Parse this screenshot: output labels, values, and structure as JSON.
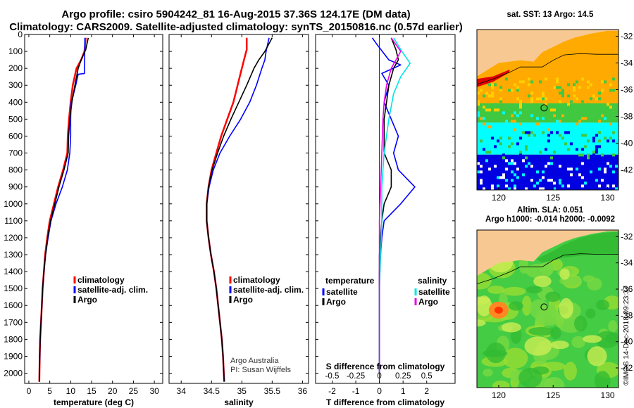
{
  "title_line1": "Argo profile: csiro 5904242_81 16-Aug-2015 37.36S 124.17E (DM data)",
  "title_line2": "Climatology: CARS2009. Satellite-adjusted climatology: synTS_20150816.nc (0.57d earlier)",
  "credit": [
    "Argo Australia",
    "PI: Susan Wijffels"
  ],
  "side_label": "©IMOS 14-Dec-2018 09:23:37",
  "colors": {
    "climatology": "#ff0000",
    "satellite": "#0000ff",
    "argo": "#000000",
    "temp_diff": "#000000",
    "sal_diff": "#000000",
    "sat_temp": "#0000ff",
    "sat_sal": "#00e5e5",
    "argo_sal": "#e800e8"
  },
  "chart_data": [
    {
      "type": "line",
      "xlabel": "temperature (deg C)",
      "xlim": [
        -1,
        32
      ],
      "ylim": [
        2060,
        0
      ],
      "xticks": [
        "0",
        "5",
        "10",
        "15",
        "20",
        "25",
        "30"
      ],
      "yticks": [
        "0",
        "100",
        "200",
        "300",
        "400",
        "500",
        "600",
        "700",
        "800",
        "900",
        "1000",
        "1100",
        "1200",
        "1300",
        "1400",
        "1500",
        "1600",
        "1700",
        "1800",
        "1900",
        "2000"
      ],
      "y_tick_values": [
        0,
        100,
        200,
        300,
        400,
        500,
        600,
        700,
        800,
        900,
        1000,
        1100,
        1200,
        1300,
        1400,
        1500,
        1600,
        1700,
        1800,
        1900,
        2000
      ],
      "legend": [
        "climatology",
        "satellite-adj. clim.",
        "Argo"
      ],
      "series": [
        {
          "name": "climatology",
          "color": "#ff0000",
          "points": [
            [
              13.6,
              20
            ],
            [
              13.3,
              100
            ],
            [
              12.5,
              150
            ],
            [
              11.4,
              200
            ],
            [
              10.5,
              300
            ],
            [
              10.0,
              400
            ],
            [
              9.6,
              500
            ],
            [
              9.3,
              600
            ],
            [
              9.2,
              700
            ],
            [
              8.2,
              800
            ],
            [
              7.0,
              900
            ],
            [
              6.0,
              1000
            ],
            [
              5.0,
              1100
            ],
            [
              4.4,
              1200
            ],
            [
              3.9,
              1300
            ],
            [
              3.6,
              1400
            ],
            [
              3.3,
              1500
            ],
            [
              3.1,
              1600
            ],
            [
              2.9,
              1700
            ],
            [
              2.7,
              1800
            ],
            [
              2.6,
              1900
            ],
            [
              2.5,
              2050
            ]
          ]
        },
        {
          "name": "satellite-adj. clim.",
          "color": "#0000ff",
          "points": [
            [
              13.4,
              20
            ],
            [
              13.3,
              230
            ],
            [
              11.8,
              235
            ],
            [
              11.2,
              300
            ],
            [
              10.5,
              370
            ],
            [
              10.1,
              400
            ],
            [
              10.0,
              500
            ],
            [
              10.0,
              600
            ],
            [
              9.8,
              700
            ],
            [
              9.2,
              800
            ],
            [
              8.0,
              900
            ],
            [
              6.5,
              1000
            ],
            [
              5.3,
              1100
            ],
            [
              4.6,
              1200
            ],
            [
              4.0,
              1300
            ],
            [
              3.6,
              1400
            ],
            [
              3.3,
              1500
            ],
            [
              3.1,
              1600
            ],
            [
              2.9,
              1700
            ],
            [
              2.7,
              1800
            ],
            [
              2.6,
              1900
            ],
            [
              2.5,
              2050
            ]
          ]
        },
        {
          "name": "Argo",
          "color": "#000000",
          "points": [
            [
              14.2,
              20
            ],
            [
              13.6,
              90
            ],
            [
              12.5,
              150
            ],
            [
              11.8,
              200
            ],
            [
              11.0,
              300
            ],
            [
              10.3,
              400
            ],
            [
              9.8,
              500
            ],
            [
              9.5,
              600
            ],
            [
              9.4,
              700
            ],
            [
              8.4,
              800
            ],
            [
              7.2,
              900
            ],
            [
              6.2,
              1000
            ],
            [
              5.2,
              1100
            ],
            [
              4.5,
              1200
            ],
            [
              4.0,
              1300
            ],
            [
              3.6,
              1400
            ],
            [
              3.3,
              1500
            ],
            [
              3.1,
              1600
            ],
            [
              2.9,
              1700
            ],
            [
              2.7,
              1800
            ],
            [
              2.6,
              1900
            ],
            [
              2.5,
              2050
            ]
          ]
        }
      ]
    },
    {
      "type": "line",
      "xlabel": "salinity",
      "xlim": [
        33.8,
        36.1
      ],
      "ylim": [
        2060,
        0
      ],
      "xticks": [
        "34",
        "34.5",
        "35",
        "35.5",
        "36"
      ],
      "x_tick_values": [
        34,
        34.5,
        35,
        35.5,
        36
      ],
      "legend": [
        "climatology",
        "satellite-adj. clim.",
        "Argo"
      ],
      "series": [
        {
          "name": "climatology",
          "color": "#ff0000",
          "points": [
            [
              35.08,
              20
            ],
            [
              35.08,
              90
            ],
            [
              35.05,
              130
            ],
            [
              35.0,
              200
            ],
            [
              34.93,
              300
            ],
            [
              34.86,
              400
            ],
            [
              34.76,
              500
            ],
            [
              34.66,
              600
            ],
            [
              34.58,
              700
            ],
            [
              34.5,
              800
            ],
            [
              34.45,
              900
            ],
            [
              34.42,
              1000
            ],
            [
              34.42,
              1100
            ],
            [
              34.45,
              1200
            ],
            [
              34.49,
              1300
            ],
            [
              34.54,
              1400
            ],
            [
              34.58,
              1500
            ],
            [
              34.61,
              1600
            ],
            [
              34.64,
              1700
            ],
            [
              34.67,
              1800
            ],
            [
              34.69,
              1900
            ],
            [
              34.71,
              2050
            ]
          ]
        },
        {
          "name": "satellite-adj. clim.",
          "color": "#0000ff",
          "points": [
            [
              35.45,
              20
            ],
            [
              35.4,
              100
            ],
            [
              35.38,
              150
            ],
            [
              35.33,
              200
            ],
            [
              35.24,
              300
            ],
            [
              35.13,
              400
            ],
            [
              34.98,
              500
            ],
            [
              34.8,
              600
            ],
            [
              34.64,
              700
            ],
            [
              34.53,
              800
            ],
            [
              34.46,
              900
            ],
            [
              34.42,
              1000
            ],
            [
              34.42,
              1100
            ],
            [
              34.45,
              1200
            ],
            [
              34.49,
              1300
            ],
            [
              34.54,
              1400
            ],
            [
              34.58,
              1500
            ],
            [
              34.61,
              1600
            ],
            [
              34.64,
              1700
            ],
            [
              34.67,
              1800
            ],
            [
              34.69,
              1900
            ],
            [
              34.71,
              2050
            ]
          ]
        },
        {
          "name": "Argo",
          "color": "#000000",
          "points": [
            [
              35.5,
              20
            ],
            [
              35.38,
              100
            ],
            [
              35.28,
              150
            ],
            [
              35.2,
              200
            ],
            [
              35.08,
              300
            ],
            [
              34.95,
              400
            ],
            [
              34.82,
              500
            ],
            [
              34.7,
              600
            ],
            [
              34.6,
              700
            ],
            [
              34.51,
              800
            ],
            [
              34.45,
              900
            ],
            [
              34.42,
              1000
            ],
            [
              34.42,
              1100
            ],
            [
              34.45,
              1200
            ],
            [
              34.49,
              1300
            ],
            [
              34.54,
              1400
            ],
            [
              34.58,
              1500
            ],
            [
              34.61,
              1600
            ],
            [
              34.64,
              1700
            ],
            [
              34.67,
              1800
            ],
            [
              34.69,
              1900
            ],
            [
              34.71,
              2050
            ]
          ]
        }
      ]
    },
    {
      "type": "line",
      "xlabel": "T difference from climatology",
      "xlabel2": "S difference from climatology",
      "xlim": [
        -2.7,
        3.2
      ],
      "ylim": [
        2060,
        0
      ],
      "xticks": [
        "-2",
        "-1",
        "0",
        "1",
        "2"
      ],
      "x_tick_values": [
        -2,
        -1,
        0,
        1,
        2
      ],
      "xticks2": [
        "-0.5",
        "-0.25",
        "0",
        "0.25",
        "0.5"
      ],
      "legend_left_title": "temperature",
      "legend_right_title": "salinity",
      "legend_left": [
        "satellite",
        "Argo"
      ],
      "legend_right": [
        "satellite",
        "Argo"
      ],
      "series": [
        {
          "name": "temperature satellite",
          "color": "#0000ff",
          "points": [
            [
              -0.3,
              20
            ],
            [
              -0.1,
              60
            ],
            [
              0.4,
              150
            ],
            [
              0.9,
              180
            ],
            [
              0.1,
              230
            ],
            [
              0.4,
              300
            ],
            [
              0.2,
              400
            ],
            [
              0.5,
              500
            ],
            [
              0.8,
              600
            ],
            [
              0.6,
              700
            ],
            [
              0.8,
              800
            ],
            [
              1.5,
              900
            ],
            [
              0.9,
              1000
            ],
            [
              0.2,
              1100
            ],
            [
              0.1,
              1200
            ],
            [
              0.05,
              1300
            ],
            [
              0.0,
              1400
            ],
            [
              0.0,
              1600
            ],
            [
              0.0,
              2000
            ]
          ]
        },
        {
          "name": "temperature Argo",
          "color": "#000000",
          "points": [
            [
              0.5,
              20
            ],
            [
              0.7,
              90
            ],
            [
              0.8,
              150
            ],
            [
              0.6,
              200
            ],
            [
              0.4,
              300
            ],
            [
              0.3,
              400
            ],
            [
              0.2,
              500
            ],
            [
              0.2,
              600
            ],
            [
              0.2,
              700
            ],
            [
              0.5,
              800
            ],
            [
              0.5,
              900
            ],
            [
              0.2,
              1000
            ],
            [
              0.1,
              1100
            ],
            [
              0.05,
              1200
            ],
            [
              0.0,
              1300
            ],
            [
              0.0,
              2000
            ]
          ]
        },
        {
          "name": "salinity satellite",
          "color": "#00e5e5",
          "points": [
            [
              0.6,
              20
            ],
            [
              0.95,
              100
            ],
            [
              1.3,
              170
            ],
            [
              0.9,
              250
            ],
            [
              0.6,
              350
            ],
            [
              0.4,
              500
            ],
            [
              0.2,
              700
            ],
            [
              0.1,
              900
            ],
            [
              0.1,
              1100
            ],
            [
              0.05,
              1300
            ],
            [
              0.0,
              1500
            ],
            [
              0.0,
              2000
            ]
          ]
        },
        {
          "name": "salinity Argo",
          "color": "#e800e8",
          "points": [
            [
              0.5,
              20
            ],
            [
              0.9,
              100
            ],
            [
              0.5,
              200
            ],
            [
              0.3,
              300
            ],
            [
              0.2,
              400
            ],
            [
              0.15,
              500
            ],
            [
              0.1,
              700
            ],
            [
              0.05,
              900
            ],
            [
              0.0,
              1100
            ],
            [
              0.0,
              2000
            ]
          ]
        }
      ]
    }
  ],
  "maps": [
    {
      "title": "sat. SST: 13 Argo: 14.5",
      "xticks": [
        "120",
        "125",
        "130"
      ],
      "yticks": [
        "-32",
        "-34",
        "-36",
        "-38",
        "-40",
        "-42"
      ],
      "xlim": [
        118,
        131
      ],
      "ylim": [
        -43.5,
        -31.5
      ],
      "marker": [
        124.17,
        -37.36
      ]
    },
    {
      "title": "Altim. SLA: 0.051",
      "subtitle": "Argo h1000: -0.014 h2000: -0.0092",
      "xticks": [
        "120",
        "125",
        "130"
      ],
      "yticks": [
        "-32",
        "-34",
        "-36",
        "-38",
        "-40",
        "-42"
      ],
      "xlim": [
        118,
        131
      ],
      "ylim": [
        -43.5,
        -31.5
      ],
      "marker": [
        124.17,
        -37.36
      ]
    }
  ]
}
